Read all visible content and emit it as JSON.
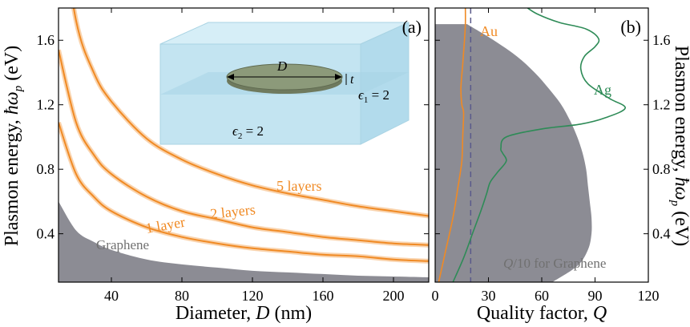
{
  "colors": {
    "orange": "#f08a24",
    "orange_band": "#f6c08a",
    "green": "#2e8b57",
    "gray_fill": "#8c8c94",
    "dashed": "#5a5a8a",
    "inset_box": "#bfe2f0",
    "inset_disk": "#8c9a7a",
    "label_gray": "#707070"
  },
  "chart_data": [
    {
      "panel": "(a)",
      "type": "line",
      "xlabel_main": "Diameter, ",
      "xlabel_var": "D",
      "xlabel_unit": " (nm)",
      "ylabel_main": "Plasmon energy, ",
      "ylabel_var": "ħω",
      "ylabel_sub": "p",
      "ylabel_unit": " (eV)",
      "xlim": [
        10,
        220
      ],
      "ylim": [
        0.1,
        1.8
      ],
      "xticks": [
        40,
        80,
        120,
        160,
        200
      ],
      "yticks": [
        0.4,
        0.8,
        1.2,
        1.6
      ],
      "series": [
        {
          "name": "5 layers",
          "x": [
            10,
            20,
            30,
            40,
            60,
            80,
            100,
            120,
            140,
            160,
            180,
            200,
            220
          ],
          "y": [
            2.43,
            1.72,
            1.4,
            1.22,
            0.99,
            0.86,
            0.77,
            0.7,
            0.65,
            0.61,
            0.57,
            0.54,
            0.51
          ]
        },
        {
          "name": "2 layers",
          "x": [
            10,
            20,
            30,
            40,
            60,
            80,
            100,
            120,
            140,
            160,
            180,
            200,
            220
          ],
          "y": [
            1.54,
            1.09,
            0.89,
            0.77,
            0.63,
            0.54,
            0.49,
            0.44,
            0.41,
            0.38,
            0.36,
            0.34,
            0.33
          ]
        },
        {
          "name": "1 layer",
          "x": [
            10,
            20,
            30,
            40,
            60,
            80,
            100,
            120,
            140,
            160,
            180,
            200,
            220
          ],
          "y": [
            1.09,
            0.77,
            0.63,
            0.54,
            0.44,
            0.38,
            0.34,
            0.31,
            0.29,
            0.27,
            0.26,
            0.24,
            0.23
          ]
        }
      ],
      "fill_region": {
        "name": "Graphene",
        "x": [
          10,
          20,
          30,
          40,
          60,
          80,
          100,
          120,
          140,
          160,
          180,
          200,
          220
        ],
        "y": [
          0.6,
          0.42,
          0.35,
          0.3,
          0.24,
          0.21,
          0.19,
          0.17,
          0.16,
          0.15,
          0.14,
          0.135,
          0.13
        ]
      },
      "inset": {
        "D_label": "D",
        "t_label": "t",
        "eps1_label": "ϵ",
        "eps1_sub": "1",
        "eps1_val": " = 2",
        "eps2_label": "ϵ",
        "eps2_sub": "2",
        "eps2_val": " = 2"
      }
    },
    {
      "panel": "(b)",
      "type": "line",
      "xlabel_main": "Quality factor, ",
      "xlabel_var": "Q",
      "ylabel_main": "Plasmon energy, ",
      "ylabel_var": "ħω",
      "ylabel_sub": "p",
      "ylabel_unit": " (eV)",
      "xlim": [
        0,
        120
      ],
      "ylim": [
        0.1,
        1.8
      ],
      "xticks": [
        0,
        30,
        60,
        90,
        120
      ],
      "yticks": [
        0.4,
        0.8,
        1.2,
        1.6
      ],
      "series": [
        {
          "name": "Au",
          "x": [
            2,
            6,
            10,
            13,
            15,
            15.5,
            16,
            15,
            14.5,
            15.5,
            16.5,
            17,
            17
          ],
          "y": [
            0.1,
            0.3,
            0.5,
            0.7,
            0.85,
            1.0,
            1.15,
            1.2,
            1.3,
            1.45,
            1.6,
            1.7,
            1.8
          ]
        },
        {
          "name": "Ag",
          "x": [
            10,
            16,
            21,
            26,
            29,
            31,
            35,
            40,
            38,
            37,
            40,
            60,
            82,
            96,
            107,
            98,
            86,
            82,
            84,
            90,
            92,
            85,
            70,
            58,
            52
          ],
          "y": [
            0.1,
            0.25,
            0.4,
            0.55,
            0.65,
            0.72,
            0.78,
            0.85,
            0.9,
            0.93,
            1.0,
            1.05,
            1.08,
            1.12,
            1.18,
            1.24,
            1.33,
            1.42,
            1.5,
            1.56,
            1.61,
            1.67,
            1.71,
            1.76,
            1.8
          ]
        }
      ],
      "dashed_x": 20,
      "fill_region": {
        "name": "Q/10 for Graphene",
        "y": [
          0.1,
          0.2,
          0.3,
          0.4,
          0.5,
          0.6,
          0.7,
          0.8,
          0.9,
          1.0,
          1.1,
          1.2,
          1.3,
          1.4,
          1.5,
          1.6,
          1.7
        ],
        "x": [
          66,
          80,
          86,
          88,
          88,
          87,
          86,
          85,
          83,
          80,
          76,
          71,
          64,
          56,
          46,
          33,
          18
        ]
      }
    }
  ],
  "annotations": {
    "graphene_a": "Graphene",
    "au": "Au",
    "ag": "Ag",
    "graphene_b_italic": "Q",
    "graphene_b_rest": "/10 for Graphene"
  }
}
